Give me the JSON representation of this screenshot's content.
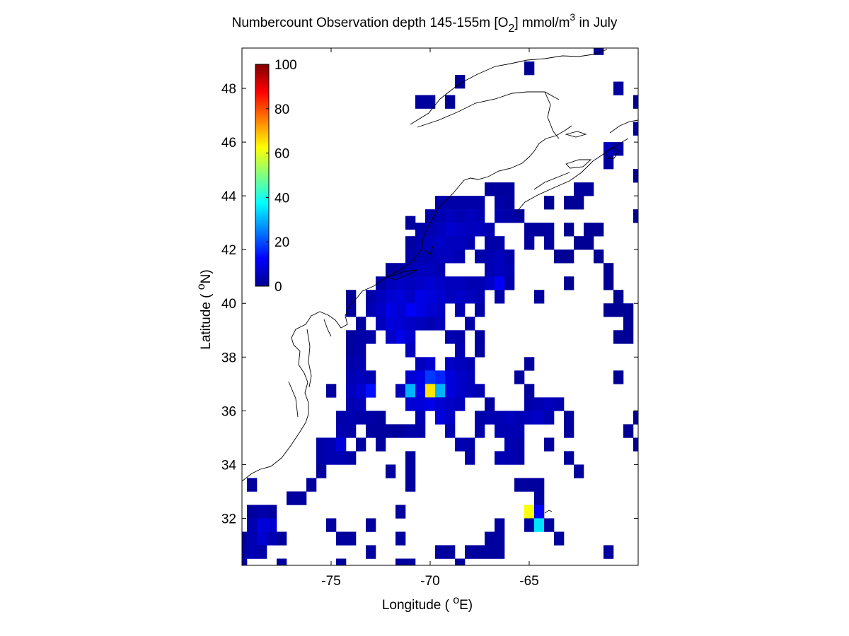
{
  "chart_data": {
    "type": "heatmap",
    "title": {
      "part1": "Numbercount Observation depth 145-155m [O",
      "sub": "2",
      "part2": "] mmol/m",
      "sup": "3",
      "part3": " in July"
    },
    "xlabel": {
      "prefix": "Longitude ( ",
      "degree": "o",
      "suffix": "E)"
    },
    "ylabel": {
      "prefix": "Latitude ( ",
      "degree": "o",
      "suffix": "N)"
    },
    "xlim": [
      -79.5,
      -59.5
    ],
    "ylim": [
      30.25,
      49.5
    ],
    "xticks": [
      -75,
      -70,
      -65
    ],
    "xtick_labels": [
      "-75",
      "-70",
      "-65"
    ],
    "yticks": [
      32,
      34,
      36,
      38,
      40,
      42,
      44,
      46,
      48
    ],
    "ytick_labels": [
      "32",
      "34",
      "36",
      "38",
      "40",
      "42",
      "44",
      "46",
      "48"
    ],
    "grid": false,
    "cell_size_deg": 0.5,
    "colorbar": {
      "range": [
        0,
        100
      ],
      "ticks": [
        0,
        20,
        40,
        60,
        80,
        100
      ],
      "tick_labels": [
        "0",
        "20",
        "40",
        "60",
        "80",
        "100"
      ],
      "colormap": "jet",
      "placement": "upper-left inside axes"
    },
    "coastline": "black outline of North American east coast and Nova Scotia/Newfoundland",
    "cells_columns": [
      "lon",
      "lat",
      "count"
    ],
    "cells": [
      [
        -61.5,
        49.5,
        2
      ],
      [
        -65.0,
        48.75,
        2
      ],
      [
        -68.5,
        48.25,
        2
      ],
      [
        -60.5,
        48.0,
        3
      ],
      [
        -59.5,
        47.5,
        2
      ],
      [
        -70.0,
        47.5,
        3
      ],
      [
        -70.5,
        47.5,
        3
      ],
      [
        -69.0,
        47.5,
        2
      ],
      [
        -59.5,
        46.5,
        3
      ],
      [
        -61.0,
        45.75,
        6
      ],
      [
        -60.5,
        45.75,
        4
      ],
      [
        -61.0,
        45.25,
        3
      ],
      [
        -59.5,
        44.75,
        2
      ],
      [
        -66.0,
        44.25,
        3
      ],
      [
        -66.5,
        44.25,
        3
      ],
      [
        -67.0,
        44.25,
        3
      ],
      [
        -62.5,
        44.25,
        3
      ],
      [
        -62.0,
        44.25,
        3
      ],
      [
        -68.5,
        43.75,
        4
      ],
      [
        -68.0,
        43.75,
        4
      ],
      [
        -67.5,
        43.75,
        4
      ],
      [
        -66.5,
        43.75,
        4
      ],
      [
        -66.0,
        43.75,
        3
      ],
      [
        -68.5,
        43.25,
        5
      ],
      [
        -68.0,
        43.25,
        6
      ],
      [
        -67.5,
        43.25,
        5
      ],
      [
        -66.5,
        43.25,
        5
      ],
      [
        -66.0,
        43.25,
        4
      ],
      [
        -65.5,
        43.25,
        3
      ],
      [
        -64.0,
        43.75,
        2
      ],
      [
        -63.0,
        43.75,
        2
      ],
      [
        -62.5,
        43.75,
        2
      ],
      [
        -69.0,
        43.75,
        4
      ],
      [
        -69.5,
        43.75,
        4
      ],
      [
        -69.5,
        43.25,
        5
      ],
      [
        -69.0,
        43.25,
        6
      ],
      [
        -70.0,
        43.25,
        4
      ],
      [
        -71.0,
        43.0,
        3
      ],
      [
        -59.5,
        43.25,
        2
      ],
      [
        -69.5,
        42.75,
        6
      ],
      [
        -69.0,
        42.75,
        8
      ],
      [
        -68.5,
        42.75,
        7
      ],
      [
        -68.0,
        42.75,
        6
      ],
      [
        -67.5,
        42.75,
        6
      ],
      [
        -67.0,
        42.75,
        5
      ],
      [
        -65.0,
        42.75,
        3
      ],
      [
        -64.5,
        42.75,
        3
      ],
      [
        -64.0,
        42.75,
        3
      ],
      [
        -63.0,
        42.75,
        2
      ],
      [
        -62.0,
        42.75,
        2
      ],
      [
        -61.5,
        42.75,
        2
      ],
      [
        -70.0,
        42.75,
        5
      ],
      [
        -70.5,
        42.75,
        4
      ],
      [
        -70.5,
        42.25,
        5
      ],
      [
        -70.0,
        42.25,
        6
      ],
      [
        -69.5,
        42.25,
        7
      ],
      [
        -69.0,
        42.25,
        6
      ],
      [
        -68.5,
        42.25,
        6
      ],
      [
        -68.0,
        42.25,
        5
      ],
      [
        -67.0,
        42.25,
        4
      ],
      [
        -66.5,
        42.25,
        4
      ],
      [
        -65.0,
        42.25,
        3
      ],
      [
        -64.0,
        42.25,
        3
      ],
      [
        -62.5,
        42.25,
        2
      ],
      [
        -62.0,
        42.25,
        2
      ],
      [
        -71.0,
        42.25,
        3
      ],
      [
        -71.0,
        41.75,
        4
      ],
      [
        -70.5,
        41.75,
        5
      ],
      [
        -70.0,
        41.75,
        5
      ],
      [
        -69.5,
        41.75,
        6
      ],
      [
        -69.0,
        41.75,
        6
      ],
      [
        -68.5,
        41.75,
        5
      ],
      [
        -67.5,
        41.75,
        4
      ],
      [
        -67.0,
        41.75,
        5
      ],
      [
        -66.5,
        41.75,
        6
      ],
      [
        -66.0,
        41.75,
        4
      ],
      [
        -63.5,
        41.75,
        2
      ],
      [
        -63.0,
        41.75,
        2
      ],
      [
        -61.5,
        41.75,
        2
      ],
      [
        -72.0,
        41.25,
        3
      ],
      [
        -71.5,
        41.25,
        4
      ],
      [
        -71.0,
        41.25,
        5
      ],
      [
        -70.5,
        41.25,
        6
      ],
      [
        -70.0,
        41.25,
        6
      ],
      [
        -69.5,
        41.25,
        5
      ],
      [
        -67.0,
        41.25,
        5
      ],
      [
        -66.5,
        41.25,
        6
      ],
      [
        -66.0,
        41.25,
        5
      ],
      [
        -61.0,
        41.25,
        2
      ],
      [
        -72.5,
        40.75,
        4
      ],
      [
        -72.0,
        40.75,
        6
      ],
      [
        -71.5,
        40.75,
        7
      ],
      [
        -71.0,
        40.75,
        6
      ],
      [
        -70.5,
        40.75,
        7
      ],
      [
        -70.0,
        40.75,
        8
      ],
      [
        -69.5,
        40.75,
        7
      ],
      [
        -69.0,
        40.75,
        6
      ],
      [
        -68.5,
        40.75,
        6
      ],
      [
        -68.0,
        40.75,
        5
      ],
      [
        -67.5,
        40.75,
        5
      ],
      [
        -67.0,
        40.75,
        7
      ],
      [
        -66.5,
        40.75,
        12
      ],
      [
        -66.0,
        40.75,
        4
      ],
      [
        -63.0,
        40.75,
        2
      ],
      [
        -61.0,
        40.75,
        2
      ],
      [
        -73.0,
        40.25,
        4
      ],
      [
        -72.5,
        40.25,
        6
      ],
      [
        -72.0,
        40.25,
        8
      ],
      [
        -71.5,
        40.25,
        9
      ],
      [
        -71.0,
        40.25,
        7
      ],
      [
        -70.5,
        40.25,
        10
      ],
      [
        -70.0,
        40.25,
        9
      ],
      [
        -69.5,
        40.25,
        8
      ],
      [
        -69.0,
        40.25,
        6
      ],
      [
        -68.5,
        40.25,
        7
      ],
      [
        -68.0,
        40.25,
        6
      ],
      [
        -67.5,
        40.25,
        5
      ],
      [
        -66.5,
        40.25,
        4
      ],
      [
        -64.5,
        40.25,
        3
      ],
      [
        -60.5,
        40.25,
        2
      ],
      [
        -74.0,
        40.25,
        2
      ],
      [
        -74.0,
        39.75,
        3
      ],
      [
        -73.0,
        39.75,
        5
      ],
      [
        -72.5,
        39.75,
        7
      ],
      [
        -72.0,
        39.75,
        10
      ],
      [
        -71.5,
        39.75,
        8
      ],
      [
        -71.0,
        39.75,
        12
      ],
      [
        -70.5,
        39.75,
        10
      ],
      [
        -70.0,
        39.75,
        8
      ],
      [
        -69.5,
        39.75,
        7
      ],
      [
        -68.5,
        39.75,
        5
      ],
      [
        -67.5,
        39.75,
        4
      ],
      [
        -61.0,
        39.75,
        2
      ],
      [
        -60.5,
        39.75,
        2
      ],
      [
        -60.0,
        39.75,
        2
      ],
      [
        -73.5,
        39.25,
        3
      ],
      [
        -72.5,
        39.25,
        6
      ],
      [
        -72.0,
        39.25,
        9
      ],
      [
        -71.5,
        39.25,
        8
      ],
      [
        -71.0,
        39.25,
        7
      ],
      [
        -70.5,
        39.25,
        6
      ],
      [
        -70.0,
        39.25,
        5
      ],
      [
        -69.5,
        39.25,
        6
      ],
      [
        -68.0,
        39.25,
        4
      ],
      [
        -60.0,
        39.25,
        2
      ],
      [
        -74.0,
        38.75,
        3
      ],
      [
        -73.5,
        38.75,
        4
      ],
      [
        -73.0,
        38.75,
        4
      ],
      [
        -72.0,
        38.75,
        7
      ],
      [
        -71.5,
        38.75,
        10
      ],
      [
        -71.0,
        38.75,
        8
      ],
      [
        -69.0,
        38.75,
        5
      ],
      [
        -68.5,
        38.75,
        4
      ],
      [
        -67.5,
        38.75,
        3
      ],
      [
        -60.5,
        38.75,
        2
      ],
      [
        -60.0,
        38.75,
        2
      ],
      [
        -74.0,
        38.25,
        3
      ],
      [
        -73.5,
        38.25,
        4
      ],
      [
        -71.0,
        38.25,
        6
      ],
      [
        -68.5,
        38.25,
        5
      ],
      [
        -67.5,
        38.25,
        3
      ],
      [
        -74.0,
        37.75,
        4
      ],
      [
        -73.5,
        37.75,
        5
      ],
      [
        -70.5,
        37.75,
        6
      ],
      [
        -70.0,
        37.75,
        8
      ],
      [
        -69.0,
        37.75,
        7
      ],
      [
        -68.5,
        37.75,
        6
      ],
      [
        -68.0,
        37.75,
        5
      ],
      [
        -65.0,
        37.75,
        3
      ],
      [
        -74.0,
        37.25,
        5
      ],
      [
        -73.5,
        37.25,
        6
      ],
      [
        -73.0,
        37.25,
        5
      ],
      [
        -71.0,
        37.25,
        8
      ],
      [
        -70.5,
        37.25,
        10
      ],
      [
        -70.0,
        37.25,
        18
      ],
      [
        -69.5,
        37.25,
        16
      ],
      [
        -69.0,
        37.25,
        9
      ],
      [
        -68.5,
        37.25,
        7
      ],
      [
        -68.0,
        37.25,
        6
      ],
      [
        -65.5,
        37.25,
        3
      ],
      [
        -60.5,
        37.25,
        2
      ],
      [
        -75.0,
        36.75,
        3
      ],
      [
        -74.0,
        36.75,
        6
      ],
      [
        -73.5,
        36.75,
        8
      ],
      [
        -73.0,
        36.75,
        14
      ],
      [
        -71.5,
        36.75,
        6
      ],
      [
        -71.0,
        36.75,
        30
      ],
      [
        -70.5,
        36.75,
        10
      ],
      [
        -70.0,
        36.75,
        65
      ],
      [
        -69.5,
        36.75,
        30
      ],
      [
        -69.0,
        36.75,
        9
      ],
      [
        -68.5,
        36.75,
        7
      ],
      [
        -68.0,
        36.75,
        6
      ],
      [
        -67.5,
        36.75,
        5
      ],
      [
        -65.0,
        36.75,
        3
      ],
      [
        -74.0,
        36.25,
        5
      ],
      [
        -73.5,
        36.25,
        6
      ],
      [
        -71.0,
        36.25,
        8
      ],
      [
        -70.5,
        36.25,
        9
      ],
      [
        -70.0,
        36.25,
        10
      ],
      [
        -69.5,
        36.25,
        8
      ],
      [
        -69.0,
        36.25,
        7
      ],
      [
        -68.5,
        36.25,
        6
      ],
      [
        -67.0,
        36.25,
        3
      ],
      [
        -65.0,
        36.25,
        4
      ],
      [
        -64.5,
        36.25,
        5
      ],
      [
        -64.0,
        36.25,
        6
      ],
      [
        -63.5,
        36.25,
        5
      ],
      [
        -74.5,
        35.75,
        4
      ],
      [
        -74.0,
        35.75,
        5
      ],
      [
        -73.5,
        35.75,
        4
      ],
      [
        -73.0,
        35.75,
        4
      ],
      [
        -72.5,
        35.75,
        3
      ],
      [
        -70.5,
        35.75,
        5
      ],
      [
        -69.5,
        35.75,
        9
      ],
      [
        -69.0,
        35.75,
        7
      ],
      [
        -67.5,
        35.75,
        4
      ],
      [
        -67.0,
        35.75,
        5
      ],
      [
        -66.5,
        35.75,
        5
      ],
      [
        -66.0,
        35.75,
        6
      ],
      [
        -65.5,
        35.75,
        5
      ],
      [
        -65.0,
        35.75,
        6
      ],
      [
        -64.5,
        35.75,
        7
      ],
      [
        -64.0,
        35.75,
        5
      ],
      [
        -63.0,
        35.75,
        3
      ],
      [
        -59.5,
        35.75,
        2
      ],
      [
        -74.5,
        35.25,
        5
      ],
      [
        -74.0,
        35.25,
        4
      ],
      [
        -73.0,
        35.25,
        3
      ],
      [
        -72.5,
        35.25,
        3
      ],
      [
        -72.0,
        35.25,
        3
      ],
      [
        -71.5,
        35.25,
        3
      ],
      [
        -71.0,
        35.25,
        4
      ],
      [
        -70.5,
        35.25,
        4
      ],
      [
        -69.0,
        35.25,
        5
      ],
      [
        -67.5,
        35.25,
        4
      ],
      [
        -66.5,
        35.25,
        5
      ],
      [
        -66.0,
        35.25,
        5
      ],
      [
        -65.5,
        35.25,
        5
      ],
      [
        -63.0,
        35.25,
        3
      ],
      [
        -60.0,
        35.25,
        2
      ],
      [
        -75.5,
        34.75,
        4
      ],
      [
        -75.0,
        34.75,
        5
      ],
      [
        -74.5,
        34.75,
        9
      ],
      [
        -73.5,
        34.75,
        3
      ],
      [
        -72.5,
        34.75,
        3
      ],
      [
        -68.5,
        34.75,
        5
      ],
      [
        -68.0,
        34.75,
        4
      ],
      [
        -66.0,
        34.75,
        5
      ],
      [
        -65.5,
        34.75,
        4
      ],
      [
        -64.0,
        34.75,
        3
      ],
      [
        -59.5,
        34.75,
        2
      ],
      [
        -75.5,
        34.25,
        4
      ],
      [
        -75.0,
        34.25,
        5
      ],
      [
        -74.5,
        34.25,
        5
      ],
      [
        -74.0,
        34.25,
        4
      ],
      [
        -71.0,
        34.25,
        3
      ],
      [
        -68.0,
        34.25,
        4
      ],
      [
        -66.5,
        34.25,
        5
      ],
      [
        -66.0,
        34.25,
        5
      ],
      [
        -65.5,
        34.25,
        4
      ],
      [
        -63.0,
        34.25,
        3
      ],
      [
        -75.5,
        33.75,
        3
      ],
      [
        -72.0,
        33.75,
        3
      ],
      [
        -71.0,
        33.75,
        3
      ],
      [
        -62.5,
        33.75,
        3
      ],
      [
        -76.0,
        33.25,
        3
      ],
      [
        -71.0,
        33.25,
        3
      ],
      [
        -65.5,
        33.25,
        3
      ],
      [
        -65.0,
        33.25,
        3
      ],
      [
        -64.5,
        33.25,
        3
      ],
      [
        -79.0,
        33.25,
        3
      ],
      [
        -77.0,
        32.75,
        3
      ],
      [
        -76.5,
        32.75,
        3
      ],
      [
        -64.5,
        32.75,
        3
      ],
      [
        -78.0,
        32.25,
        3
      ],
      [
        -79.0,
        32.25,
        3
      ],
      [
        -78.5,
        32.25,
        4
      ],
      [
        -71.5,
        32.25,
        3
      ],
      [
        -65.0,
        32.25,
        62
      ],
      [
        -64.5,
        32.25,
        12
      ],
      [
        -79.0,
        31.75,
        5
      ],
      [
        -78.5,
        31.75,
        9
      ],
      [
        -78.0,
        31.75,
        8
      ],
      [
        -75.0,
        31.75,
        3
      ],
      [
        -73.0,
        31.75,
        3
      ],
      [
        -66.5,
        31.75,
        3
      ],
      [
        -65.0,
        31.75,
        3
      ],
      [
        -64.5,
        31.75,
        35
      ],
      [
        -64.0,
        31.75,
        3
      ],
      [
        -79.5,
        31.25,
        3
      ],
      [
        -79.0,
        31.25,
        5
      ],
      [
        -78.5,
        31.25,
        8
      ],
      [
        -78.0,
        31.25,
        5
      ],
      [
        -77.5,
        31.25,
        3
      ],
      [
        -74.5,
        31.25,
        3
      ],
      [
        -74.0,
        31.25,
        3
      ],
      [
        -71.5,
        31.25,
        3
      ],
      [
        -67.0,
        31.25,
        3
      ],
      [
        -66.5,
        31.25,
        3
      ],
      [
        -63.5,
        31.25,
        3
      ],
      [
        -79.5,
        30.75,
        4
      ],
      [
        -79.0,
        30.75,
        5
      ],
      [
        -78.5,
        30.75,
        4
      ],
      [
        -73.0,
        30.75,
        3
      ],
      [
        -69.5,
        30.75,
        3
      ],
      [
        -69.0,
        30.75,
        3
      ],
      [
        -68.0,
        30.75,
        3
      ],
      [
        -67.5,
        30.75,
        3
      ],
      [
        -67.0,
        30.75,
        3
      ],
      [
        -66.5,
        30.75,
        3
      ],
      [
        -61.0,
        30.75,
        3
      ],
      [
        -79.5,
        30.25,
        3
      ],
      [
        -77.5,
        30.25,
        3
      ],
      [
        -74.5,
        30.25,
        3
      ],
      [
        -71.5,
        30.25,
        3
      ],
      [
        -71.0,
        30.25,
        3
      ],
      [
        -68.5,
        30.25,
        3
      ]
    ]
  }
}
